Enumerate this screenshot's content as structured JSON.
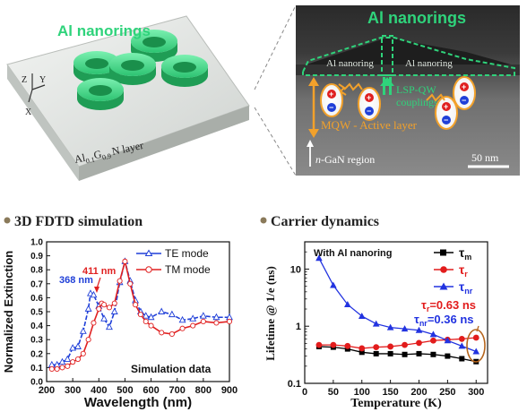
{
  "schematic": {
    "title": "Al nanorings",
    "layer_main": "Al",
    "layer_sub1": "0.1",
    "layer_mid": "G",
    "layer_sub2": "0.9",
    "layer_tail": "N layer",
    "axis_z": "Z",
    "axis_y": "Y",
    "axis_x": "X"
  },
  "tem": {
    "title": "Al nanorings",
    "ring_left": "Al nanoring",
    "ring_right": "Al nanoring",
    "coupling_line1": "LSP-QW",
    "coupling_line2": "couplings",
    "mqw_label": "MQW - Active layer",
    "gan_prefix": "n",
    "gan_rest": "-GaN region",
    "scalebar": "50 nm",
    "plus": "+",
    "minus": "−"
  },
  "panel_titles": {
    "fdtd": "3D FDTD simulation",
    "carrier": "Carrier dynamics"
  },
  "colors": {
    "green": "#2fd37b",
    "orange": "#f2a12b",
    "te": "#1f3fd8",
    "tm": "#e02020",
    "tau_m": "#000000",
    "tau_r": "#e21c1c",
    "tau_nr": "#2233e0"
  },
  "chart_data": [
    {
      "type": "line",
      "xlabel": "Wavelength (nm)",
      "ylabel": "Normalized Extinction",
      "xlim": [
        200,
        900
      ],
      "ylim": [
        0.0,
        1.0
      ],
      "xticks": [
        200,
        300,
        400,
        500,
        600,
        700,
        800,
        900
      ],
      "yticks": [
        0.0,
        0.1,
        0.2,
        0.3,
        0.4,
        0.5,
        0.6,
        0.7,
        0.8,
        0.9,
        1.0
      ],
      "legend": "top-right",
      "footnote": "Simulation data",
      "annotations": [
        {
          "text": "368 nm",
          "x": 368,
          "y": 0.63,
          "color": "#1f3fd8"
        },
        {
          "text": "411 nm",
          "x": 411,
          "y": 0.57,
          "color": "#e02020"
        }
      ],
      "series": [
        {
          "name": "TE mode",
          "marker": "triangle-open",
          "color": "#1f3fd8",
          "x": [
            220,
            240,
            260,
            280,
            300,
            320,
            340,
            360,
            368,
            380,
            400,
            420,
            440,
            460,
            480,
            500,
            520,
            540,
            560,
            580,
            600,
            640,
            680,
            720,
            760,
            800,
            850,
            900
          ],
          "y": [
            0.12,
            0.12,
            0.14,
            0.16,
            0.24,
            0.25,
            0.36,
            0.52,
            0.63,
            0.62,
            0.54,
            0.45,
            0.39,
            0.5,
            0.71,
            0.86,
            0.72,
            0.58,
            0.5,
            0.47,
            0.46,
            0.5,
            0.48,
            0.44,
            0.45,
            0.47,
            0.46,
            0.46
          ]
        },
        {
          "name": "TM mode",
          "marker": "circle-open",
          "color": "#e02020",
          "x": [
            220,
            240,
            260,
            280,
            300,
            320,
            340,
            360,
            380,
            400,
            411,
            420,
            440,
            460,
            480,
            500,
            520,
            540,
            560,
            580,
            600,
            640,
            680,
            720,
            760,
            800,
            850,
            900
          ],
          "y": [
            0.09,
            0.09,
            0.1,
            0.11,
            0.14,
            0.16,
            0.2,
            0.3,
            0.42,
            0.52,
            0.56,
            0.55,
            0.53,
            0.56,
            0.72,
            0.86,
            0.7,
            0.55,
            0.48,
            0.43,
            0.4,
            0.35,
            0.34,
            0.38,
            0.4,
            0.43,
            0.42,
            0.43
          ]
        }
      ]
    },
    {
      "type": "line",
      "xlabel": "Temperature (K)",
      "ylabel": "Lifetime @ 1/e (ns)",
      "xlim": [
        0,
        320
      ],
      "ylim": [
        0.1,
        30
      ],
      "yscale": "log",
      "xticks": [
        0,
        50,
        100,
        150,
        200,
        250,
        300
      ],
      "ytick_labels": [
        "0.1",
        "1",
        "10"
      ],
      "legend": "top-right",
      "inset_title": "With Al nanoring",
      "annotations": [
        {
          "base": "τ",
          "sub": "r",
          "value": "=0.63 ns",
          "color": "#e21c1c"
        },
        {
          "base": "τ",
          "sub": "nr",
          "value": "=0.36 ns",
          "color": "#2233e0"
        }
      ],
      "series": [
        {
          "name_base": "τ",
          "name_sub": "m",
          "marker": "square",
          "color": "#000000",
          "x": [
            25,
            50,
            75,
            100,
            125,
            150,
            175,
            200,
            225,
            250,
            275,
            300
          ],
          "y": [
            0.44,
            0.43,
            0.4,
            0.35,
            0.33,
            0.33,
            0.32,
            0.33,
            0.32,
            0.3,
            0.27,
            0.24
          ]
        },
        {
          "name_base": "τ",
          "name_sub": "r",
          "marker": "circle",
          "color": "#e21c1c",
          "x": [
            25,
            50,
            75,
            100,
            125,
            150,
            175,
            200,
            225,
            250,
            275,
            300
          ],
          "y": [
            0.47,
            0.47,
            0.45,
            0.41,
            0.43,
            0.44,
            0.47,
            0.51,
            0.56,
            0.58,
            0.6,
            0.63
          ]
        },
        {
          "name_base": "τ",
          "name_sub": "nr",
          "marker": "triangle",
          "color": "#2233e0",
          "x": [
            25,
            50,
            75,
            100,
            125,
            150,
            175,
            200,
            225,
            250,
            275,
            300
          ],
          "y": [
            15.5,
            5.2,
            2.4,
            1.5,
            1.1,
            0.95,
            0.9,
            0.85,
            0.72,
            0.56,
            0.45,
            0.36
          ]
        }
      ]
    }
  ]
}
